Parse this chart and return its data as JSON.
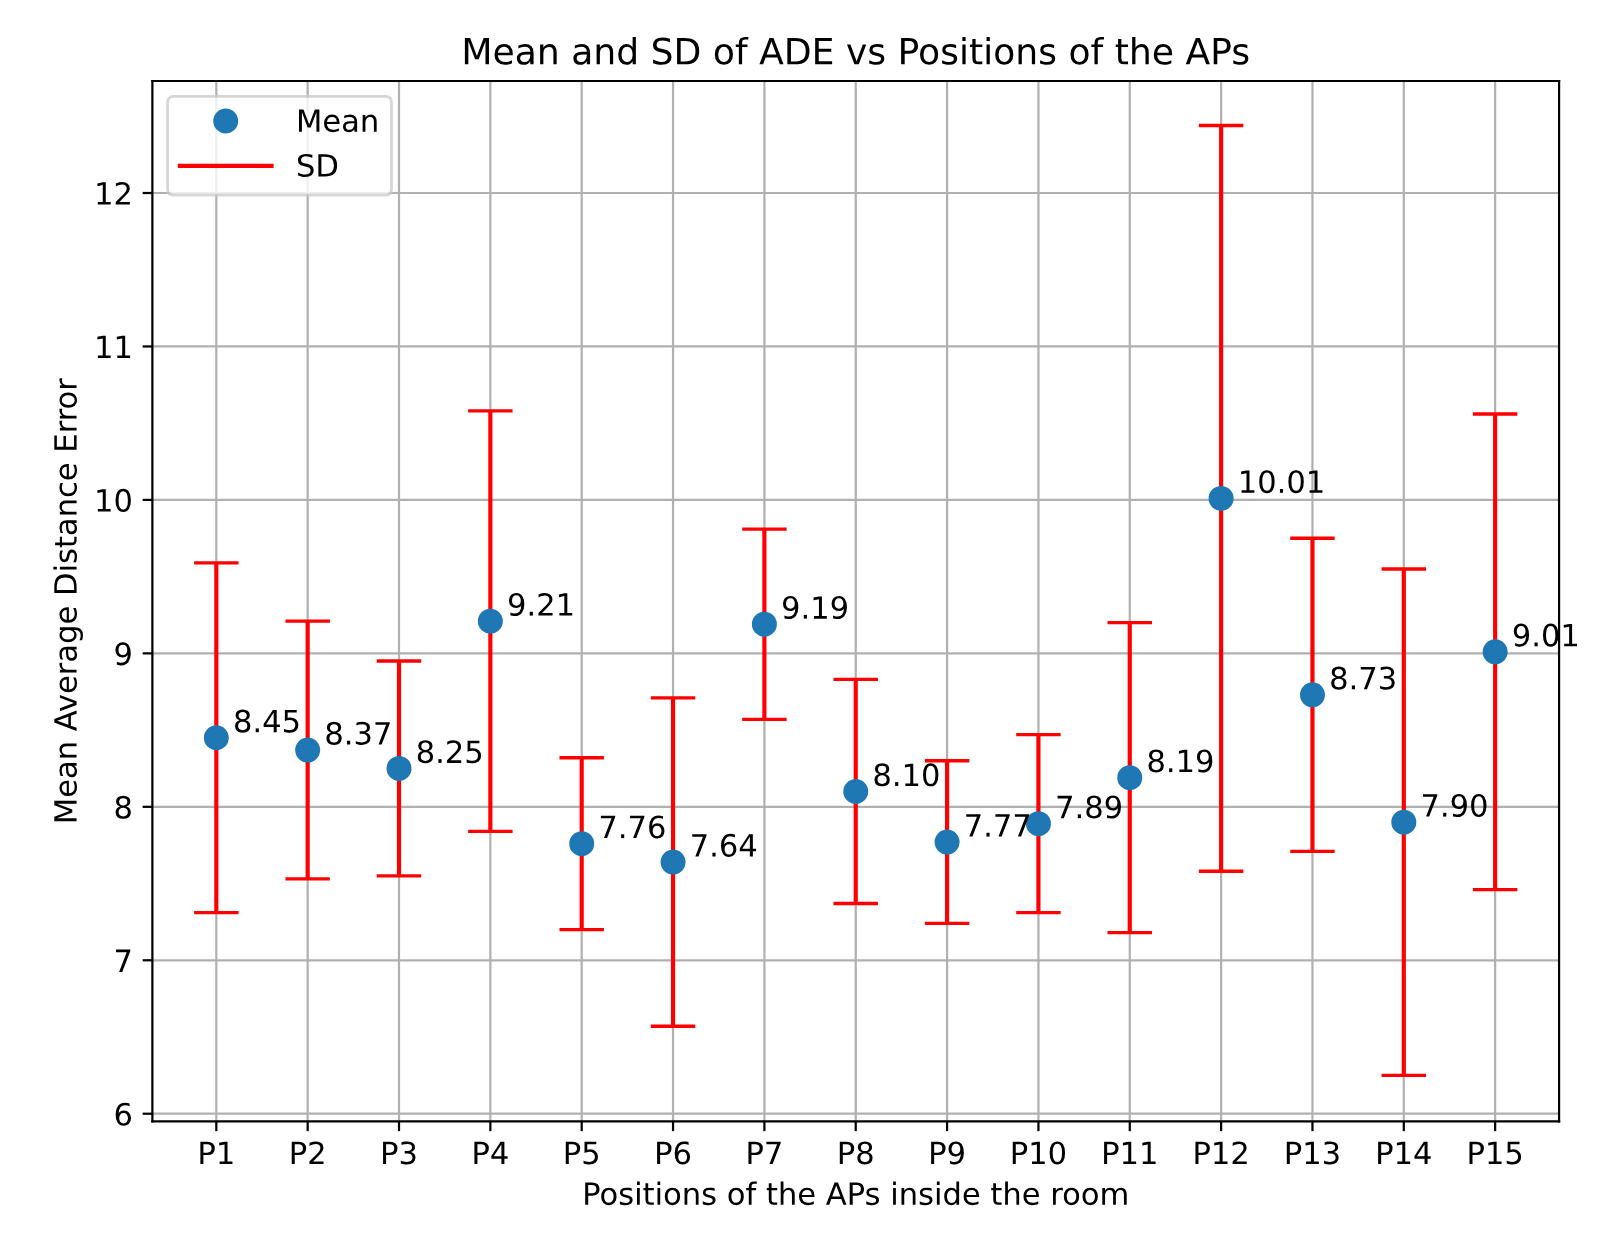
{
  "chart_data": {
    "type": "scatter",
    "title": "Mean and SD of ADE vs Positions of the APs",
    "xlabel": "Positions of the APs inside the room",
    "ylabel": "Mean Average Distance Error",
    "categories": [
      "P1",
      "P2",
      "P3",
      "P4",
      "P5",
      "P6",
      "P7",
      "P8",
      "P9",
      "P10",
      "P11",
      "P12",
      "P13",
      "P14",
      "P15"
    ],
    "series": [
      {
        "name": "Mean",
        "color": "#1f77b4",
        "values": [
          8.45,
          8.37,
          8.25,
          9.21,
          7.76,
          7.64,
          9.19,
          8.1,
          7.77,
          7.89,
          8.19,
          10.01,
          8.73,
          7.9,
          9.01
        ],
        "errors": [
          1.14,
          0.84,
          0.7,
          1.37,
          0.56,
          1.07,
          0.62,
          0.73,
          0.53,
          0.58,
          1.01,
          2.43,
          1.02,
          1.65,
          1.55
        ],
        "value_labels": [
          "8.45",
          "8.37",
          "8.25",
          "9.21",
          "7.76",
          "7.64",
          "9.19",
          "8.10",
          "7.77",
          "7.89",
          "8.19",
          "10.01",
          "8.73",
          "7.90",
          "9.01"
        ]
      }
    ],
    "ylim": [
      5.95,
      12.73
    ],
    "yticks": [
      6,
      7,
      8,
      9,
      10,
      11,
      12
    ],
    "annotations": [
      "SD"
    ],
    "grid": true,
    "legend": "top left",
    "marker": "circle"
  }
}
